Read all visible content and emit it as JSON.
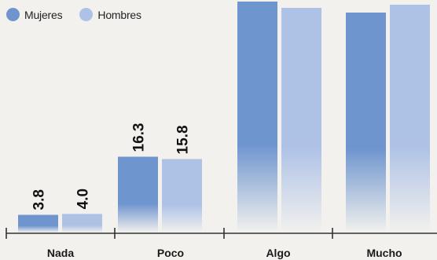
{
  "chart_data": {
    "type": "bar",
    "categories": [
      "Nada",
      "Poco",
      "Algo",
      "Mucho"
    ],
    "series": [
      {
        "name": "Mujeres",
        "color": "#6f95cf",
        "values": [
          3.8,
          16.3,
          null,
          null
        ]
      },
      {
        "name": "Hombres",
        "color": "#aec2e6",
        "values": [
          4.0,
          15.8,
          null,
          null
        ]
      }
    ],
    "ylim": [
      0,
      50
    ],
    "grid": false,
    "legend": "top-left"
  }
}
